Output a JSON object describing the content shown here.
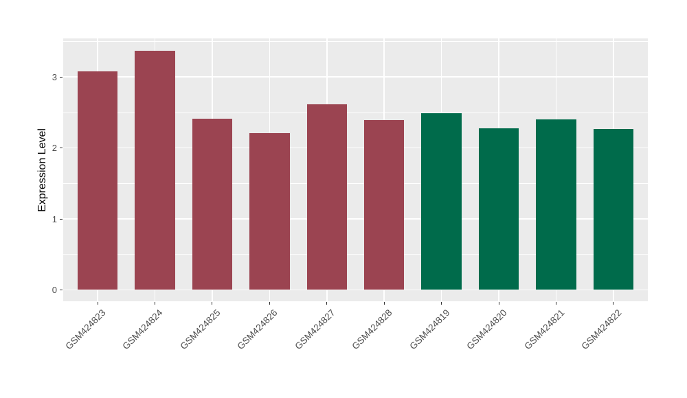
{
  "figure": {
    "background": "#FFFFFF"
  },
  "chart_data": {
    "type": "bar",
    "title": "",
    "xlabel": "",
    "ylabel": "Expression Level",
    "categories": [
      "GSM424823",
      "GSM424824",
      "GSM424825",
      "GSM424826",
      "GSM424827",
      "GSM424828",
      "GSM424819",
      "GSM424820",
      "GSM424821",
      "GSM424822"
    ],
    "values": [
      3.08,
      3.37,
      2.41,
      2.21,
      2.62,
      2.39,
      2.49,
      2.28,
      2.4,
      2.27
    ],
    "bar_colors": [
      "#9B4451",
      "#9B4451",
      "#9B4451",
      "#9B4451",
      "#9B4451",
      "#9B4451",
      "#006B4B",
      "#006B4B",
      "#006B4B",
      "#006B4B"
    ],
    "yticks": [
      0,
      1,
      2,
      3
    ],
    "yticks_minor": [
      0.5,
      1.5,
      2.5,
      3.5
    ],
    "ylim": [
      -0.17,
      3.54
    ],
    "grid": "white major+minor horizontal, white major vertical at category centers",
    "legend": false,
    "x_label_rotation_deg": 45
  },
  "colors": {
    "panel_background": "#EBEBEB",
    "gridline": "#FFFFFF",
    "bar_red": "#9B4451",
    "bar_green": "#006B4B",
    "axis_text": "#4D4D4D",
    "axis_title": "#000000",
    "tick_mark": "#333333"
  }
}
